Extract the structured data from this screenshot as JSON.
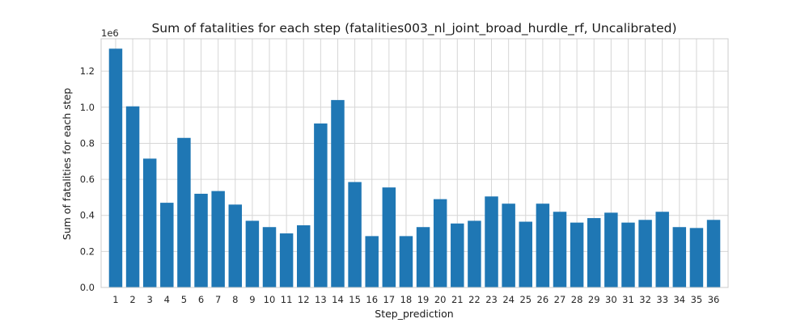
{
  "chart_data": {
    "type": "bar",
    "title": "Sum of fatalities for each step (fatalities003_nl_joint_broad_hurdle_rf, Uncalibrated)",
    "xlabel": "Step_prediction",
    "ylabel": "Sum of fatalities for each step",
    "y_offset_label": "1e6",
    "ylim": [
      0,
      1.38
    ],
    "y_ticks": [
      0.0,
      0.2,
      0.4,
      0.6,
      0.8,
      1.0,
      1.2
    ],
    "y_tick_labels": [
      "0.0",
      "0.2",
      "0.4",
      "0.6",
      "0.8",
      "1.0",
      "1.2"
    ],
    "grid": true,
    "bar_color": "#1f77b4",
    "categories": [
      "1",
      "2",
      "3",
      "4",
      "5",
      "6",
      "7",
      "8",
      "9",
      "10",
      "11",
      "12",
      "13",
      "14",
      "15",
      "16",
      "17",
      "18",
      "19",
      "20",
      "21",
      "22",
      "23",
      "24",
      "25",
      "26",
      "27",
      "28",
      "29",
      "30",
      "31",
      "32",
      "33",
      "34",
      "35",
      "36"
    ],
    "values": [
      1.325,
      1.005,
      0.715,
      0.47,
      0.83,
      0.52,
      0.535,
      0.46,
      0.37,
      0.335,
      0.3,
      0.345,
      0.91,
      1.04,
      0.585,
      0.285,
      0.555,
      0.285,
      0.335,
      0.49,
      0.355,
      0.37,
      0.505,
      0.465,
      0.365,
      0.465,
      0.42,
      0.36,
      0.385,
      0.415,
      0.36,
      0.375,
      0.42,
      0.335,
      0.33,
      0.375
    ]
  }
}
